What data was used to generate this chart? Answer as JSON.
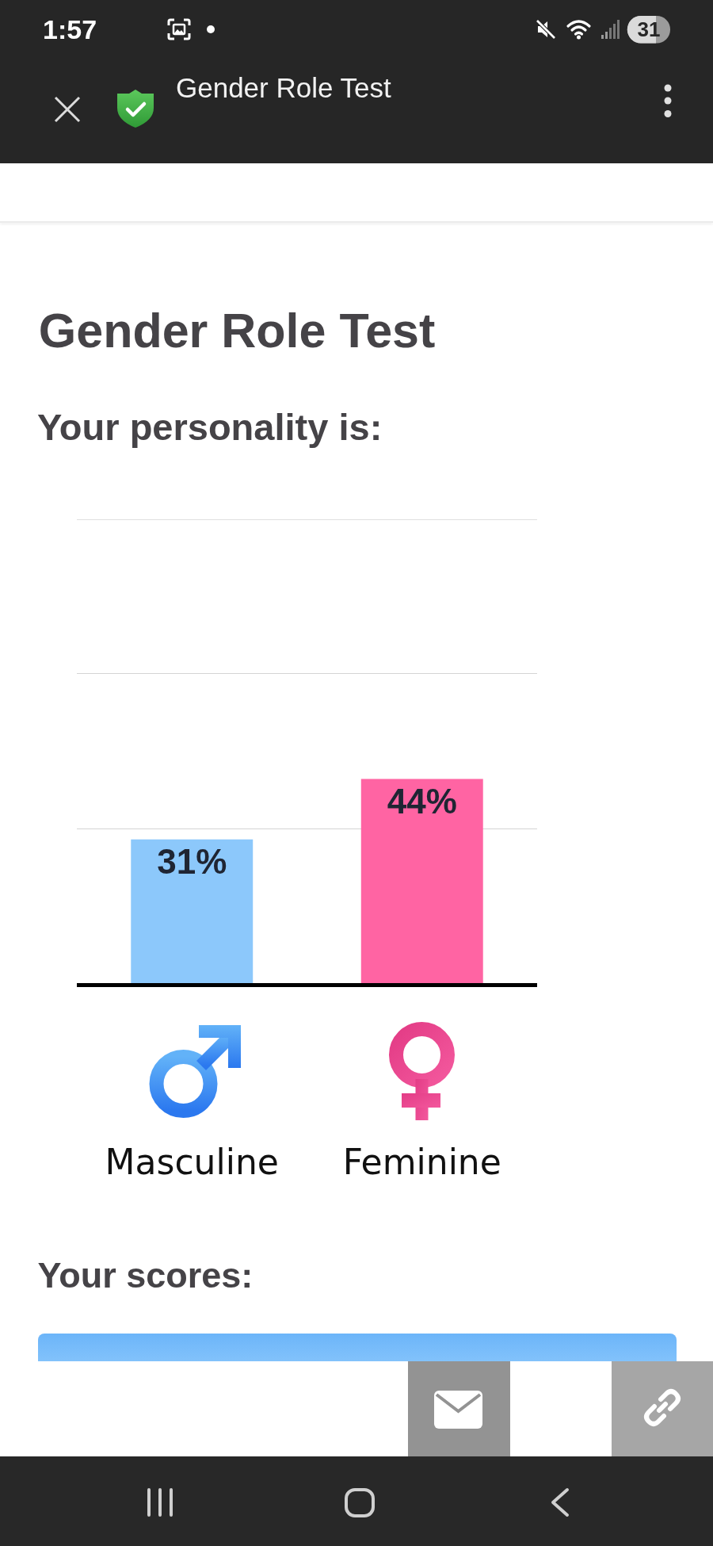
{
  "chart_data": {
    "type": "bar",
    "title": "Gender Role Test",
    "subtitle": "Your personality is:",
    "annotations": [
      "1:57",
      "31",
      "Gender Role Test",
      "Your scores:"
    ],
    "categories": [
      "Masculine",
      "Feminine"
    ],
    "values": [
      31,
      44
    ],
    "colors": [
      "#8cc8fb",
      "#ff64a3"
    ],
    "value_labels": [
      "31%",
      "44%"
    ],
    "ylim": [
      0,
      100
    ],
    "yticks": [
      {
        "value": 33.3,
        "label": null
      },
      {
        "value": 66.7,
        "label": null
      },
      {
        "value": 100,
        "label": null
      }
    ],
    "grid": "y",
    "tick_labels": "x"
  }
}
